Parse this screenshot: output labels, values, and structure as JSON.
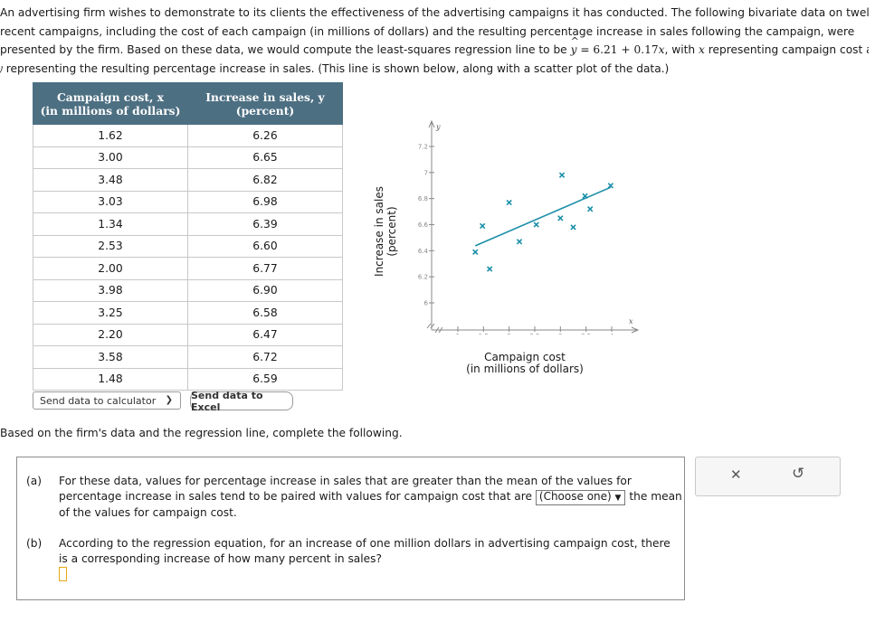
{
  "intro": {
    "line1": "An advertising firm wishes to demonstrate to its clients the effectiveness of the advertising campaigns it has conducted. The following bivariate data on twelve",
    "line2": "recent campaigns, including the cost of each campaign (in millions of dollars) and the resulting percentage increase in sales following the campaign, were",
    "line3_pre": "presented by the firm. Based on these data, we would compute the least-squares regression line to be ",
    "line3_y": "y",
    "line3_eq": " = 6.21 + 0.17",
    "line3_x": "x",
    "line3_mid": ", with ",
    "line3_x2": "x",
    "line3_post": " representing campaign cost and",
    "line4_y": "y",
    "line4": " representing the resulting percentage increase in sales. (This line is shown below, along with a scatter plot of the data.)"
  },
  "table": {
    "headers": {
      "x_line1": "Campaign cost, x",
      "x_line2": "(in millions of dollars)",
      "y_line1": "Increase in sales, y",
      "y_line2": "(percent)"
    },
    "rows": [
      [
        "1.62",
        "6.26"
      ],
      [
        "3.00",
        "6.65"
      ],
      [
        "3.48",
        "6.82"
      ],
      [
        "3.03",
        "6.98"
      ],
      [
        "1.34",
        "6.39"
      ],
      [
        "2.53",
        "6.60"
      ],
      [
        "2.00",
        "6.77"
      ],
      [
        "3.98",
        "6.90"
      ],
      [
        "3.25",
        "6.58"
      ],
      [
        "2.20",
        "6.47"
      ],
      [
        "3.58",
        "6.72"
      ],
      [
        "1.48",
        "6.59"
      ]
    ]
  },
  "buttons": {
    "calculator": "Send data to calculator",
    "excel": "Send data to Excel"
  },
  "chart_data": {
    "type": "scatter",
    "ylabel_line1": "Increase in sales",
    "ylabel_line2": "(percent)",
    "xlabel_line1": "Campaign cost",
    "xlabel_line2": "(in millions of dollars)",
    "x_axis_name": "x",
    "y_axis_name": "y",
    "xlim": [
      1,
      4
    ],
    "ylim": [
      6,
      7.2
    ],
    "x_ticks": [
      "1",
      "1.5",
      "2",
      "2.5",
      "3",
      "3.5",
      "4"
    ],
    "y_ticks": [
      "6",
      "6.2",
      "6.4",
      "6.6",
      "6.8",
      "7",
      "7.2"
    ],
    "points": [
      [
        1.62,
        6.26
      ],
      [
        3.0,
        6.65
      ],
      [
        3.48,
        6.82
      ],
      [
        3.03,
        6.98
      ],
      [
        1.34,
        6.39
      ],
      [
        2.53,
        6.6
      ],
      [
        2.0,
        6.77
      ],
      [
        3.98,
        6.9
      ],
      [
        3.25,
        6.58
      ],
      [
        2.2,
        6.47
      ],
      [
        3.58,
        6.72
      ],
      [
        1.48,
        6.59
      ]
    ],
    "regression": {
      "intercept": 6.21,
      "slope": 0.17,
      "x_from": 1.34,
      "x_to": 3.98
    },
    "colors": {
      "points": "#1a8fa8",
      "line": "#1a8fa8",
      "axes": "#888888"
    }
  },
  "based_text": "Based on the firm's data and the regression line, complete the following.",
  "questions": {
    "a_label": "(a)",
    "a_pre": "For these data, values for percentage increase in sales that are greater than the mean of the values for percentage increase in sales tend to be paired with values for campaign cost that are ",
    "a_select": "(Choose one)",
    "a_post": " the mean of the values for campaign cost.",
    "b_label": "(b)",
    "b_text": "According to the regression equation, for an increase of one million dollars in advertising campaign cost, there is a corresponding increase of how many percent in sales?",
    "b_value": ""
  },
  "side_panel": {
    "close_glyph": "✕",
    "undo_glyph": "↺"
  }
}
